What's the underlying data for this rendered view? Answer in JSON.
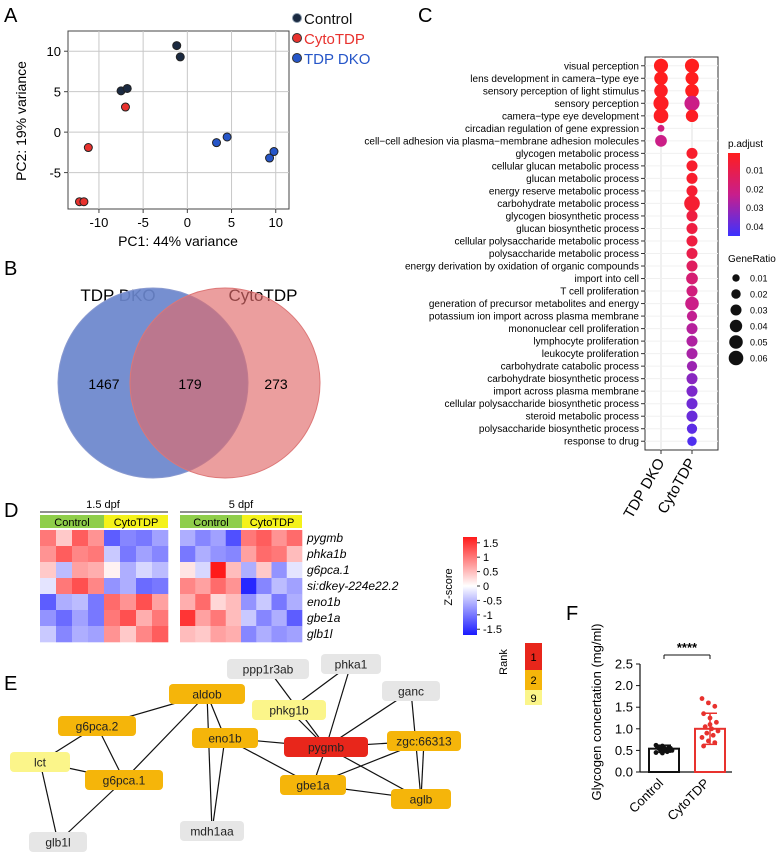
{
  "panels": {
    "A": "A",
    "B": "B",
    "C": "C",
    "D": "D",
    "E": "E",
    "F": "F"
  },
  "colors": {
    "control": "#1b2a41",
    "cytotdp": "#e8322e",
    "tdpdko": "#2656c8",
    "venn_dko": "#6a86cc",
    "venn_cyto": "#e06a6a",
    "bar_control": "#111111",
    "bar_cyto": "#e8322e"
  },
  "panelA": {
    "chart_data": {
      "type": "scatter",
      "xlabel": "PC1: 44% variance",
      "ylabel": "PC2: 19% variance",
      "xlim": [
        -13.5,
        11.5
      ],
      "ylim": [
        -9.5,
        12.5
      ],
      "xticks": [
        -10,
        -5,
        0,
        5,
        10
      ],
      "yticks": [
        -5,
        0,
        5,
        10
      ],
      "xtick_labels": [
        "-10",
        "-5",
        "0",
        "5",
        "10"
      ],
      "ytick_labels": [
        "-5",
        "0",
        "5",
        "10"
      ],
      "legend": [
        "Control",
        "CytoTDP",
        "TDP DKO"
      ],
      "series": [
        {
          "name": "Control",
          "points": [
            [
              -7.5,
              5.1
            ],
            [
              -6.8,
              5.4
            ],
            [
              -1.2,
              10.7
            ],
            [
              -0.8,
              9.3
            ]
          ]
        },
        {
          "name": "CytoTDP",
          "points": [
            [
              -7.0,
              3.1
            ],
            [
              -11.2,
              -1.9
            ],
            [
              -12.2,
              -8.6
            ],
            [
              -11.7,
              -8.6
            ]
          ]
        },
        {
          "name": "TDP DKO",
          "points": [
            [
              3.3,
              -1.3
            ],
            [
              4.5,
              -0.6
            ],
            [
              9.3,
              -3.2
            ],
            [
              9.8,
              -2.4
            ]
          ]
        }
      ]
    }
  },
  "panelB": {
    "left_label": "TDP DKO",
    "right_label": "CytoTDP",
    "left_only": "1467",
    "both": "179",
    "right_only": "273"
  },
  "panelC": {
    "chart_data": {
      "type": "scatter",
      "x": [
        "TDP DKO",
        "CytoTDP"
      ],
      "terms": [
        "visual perception",
        "lens development in camera−type eye",
        "sensory perception of light stimulus",
        "sensory perception",
        "camera−type eye development",
        "circadian regulation of gene expression",
        "cell−cell adhesion via plasma−membrane adhesion molecules",
        "glycogen metabolic process",
        "cellular glucan metabolic process",
        "glucan metabolic process",
        "energy reserve metabolic process",
        "carbohydrate metabolic process",
        "glycogen biosynthetic process",
        "glucan biosynthetic process",
        "cellular polysaccharide metabolic process",
        "polysaccharide metabolic process",
        "energy derivation by oxidation of organic compounds",
        "import into cell",
        "T cell proliferation",
        "generation of precursor metabolites and energy",
        "potassium ion import across plasma membrane",
        "mononuclear cell proliferation",
        "lymphocyte proliferation",
        "leukocyte proliferation",
        "carbohydrate catabolic process",
        "carbohydrate biosynthetic process",
        "import across plasma membrane",
        "cellular polysaccharide biosynthetic process",
        "steroid metabolic process",
        "polysaccharide biosynthetic process",
        "response to drug"
      ],
      "points": [
        {
          "term": 0,
          "x": 0,
          "ratio": 0.055,
          "padj": 0.001
        },
        {
          "term": 0,
          "x": 1,
          "ratio": 0.055,
          "padj": 0.001
        },
        {
          "term": 1,
          "x": 0,
          "ratio": 0.05,
          "padj": 0.001
        },
        {
          "term": 1,
          "x": 1,
          "ratio": 0.045,
          "padj": 0.001
        },
        {
          "term": 2,
          "x": 0,
          "ratio": 0.05,
          "padj": 0.002
        },
        {
          "term": 2,
          "x": 1,
          "ratio": 0.05,
          "padj": 0.001
        },
        {
          "term": 3,
          "x": 0,
          "ratio": 0.065,
          "padj": 0.002
        },
        {
          "term": 3,
          "x": 1,
          "ratio": 0.065,
          "padj": 0.022
        },
        {
          "term": 4,
          "x": 0,
          "ratio": 0.06,
          "padj": 0.002
        },
        {
          "term": 4,
          "x": 1,
          "ratio": 0.04,
          "padj": 0.002
        },
        {
          "term": 5,
          "x": 0,
          "ratio": 0.008,
          "padj": 0.02
        },
        {
          "term": 6,
          "x": 0,
          "ratio": 0.035,
          "padj": 0.022
        },
        {
          "term": 7,
          "x": 1,
          "ratio": 0.03,
          "padj": 0.004
        },
        {
          "term": 8,
          "x": 1,
          "ratio": 0.03,
          "padj": 0.004
        },
        {
          "term": 9,
          "x": 1,
          "ratio": 0.03,
          "padj": 0.004
        },
        {
          "term": 10,
          "x": 1,
          "ratio": 0.03,
          "padj": 0.005
        },
        {
          "term": 11,
          "x": 1,
          "ratio": 0.07,
          "padj": 0.005
        },
        {
          "term": 12,
          "x": 1,
          "ratio": 0.03,
          "padj": 0.008
        },
        {
          "term": 13,
          "x": 1,
          "ratio": 0.03,
          "padj": 0.008
        },
        {
          "term": 14,
          "x": 1,
          "ratio": 0.03,
          "padj": 0.008
        },
        {
          "term": 15,
          "x": 1,
          "ratio": 0.03,
          "padj": 0.01
        },
        {
          "term": 16,
          "x": 1,
          "ratio": 0.03,
          "padj": 0.014
        },
        {
          "term": 17,
          "x": 1,
          "ratio": 0.035,
          "padj": 0.018
        },
        {
          "term": 18,
          "x": 1,
          "ratio": 0.03,
          "padj": 0.02
        },
        {
          "term": 19,
          "x": 1,
          "ratio": 0.05,
          "padj": 0.022
        },
        {
          "term": 20,
          "x": 1,
          "ratio": 0.025,
          "padj": 0.024
        },
        {
          "term": 21,
          "x": 1,
          "ratio": 0.03,
          "padj": 0.026
        },
        {
          "term": 22,
          "x": 1,
          "ratio": 0.03,
          "padj": 0.027
        },
        {
          "term": 23,
          "x": 1,
          "ratio": 0.03,
          "padj": 0.028
        },
        {
          "term": 24,
          "x": 1,
          "ratio": 0.025,
          "padj": 0.03
        },
        {
          "term": 25,
          "x": 1,
          "ratio": 0.03,
          "padj": 0.033
        },
        {
          "term": 26,
          "x": 1,
          "ratio": 0.03,
          "padj": 0.035
        },
        {
          "term": 27,
          "x": 1,
          "ratio": 0.03,
          "padj": 0.037
        },
        {
          "term": 28,
          "x": 1,
          "ratio": 0.03,
          "padj": 0.038
        },
        {
          "term": 29,
          "x": 1,
          "ratio": 0.025,
          "padj": 0.04
        },
        {
          "term": 30,
          "x": 1,
          "ratio": 0.02,
          "padj": 0.042
        }
      ],
      "legend_padj": {
        "title": "p.adjust",
        "ticks": [
          "0.01",
          "0.02",
          "0.03",
          "0.04"
        ],
        "values": [
          0.01,
          0.02,
          0.03,
          0.04
        ],
        "range": [
          0.001,
          0.045
        ]
      },
      "legend_ratio": {
        "title": "GeneRatio",
        "ticks": [
          "0.01",
          "0.02",
          "0.03",
          "0.04",
          "0.05",
          "0.06"
        ],
        "values": [
          0.01,
          0.02,
          0.03,
          0.04,
          0.05,
          0.06
        ]
      }
    }
  },
  "panelD": {
    "chart_data": {
      "type": "heatmap",
      "blocks": [
        {
          "title": "1.5 dpf",
          "groups": [
            "Control",
            "CytoTDP"
          ],
          "z": [
            [
              1.0,
              0.4,
              1.2,
              0.8,
              -1.2,
              -0.9,
              -1.0,
              -0.7
            ],
            [
              0.8,
              1.2,
              0.9,
              1.0,
              -0.4,
              -1.0,
              -0.7,
              -0.9
            ],
            [
              0.4,
              -0.5,
              0.7,
              0.6,
              0.1,
              -0.6,
              -0.3,
              -0.5
            ],
            [
              -0.2,
              1.0,
              1.3,
              0.9,
              -0.8,
              -0.6,
              -1.1,
              -1.0
            ],
            [
              -1.2,
              -0.6,
              -0.5,
              -1.0,
              1.1,
              0.8,
              1.3,
              0.7
            ],
            [
              -0.8,
              -1.1,
              -0.7,
              -1.0,
              1.0,
              1.3,
              0.6,
              1.0
            ],
            [
              -0.4,
              -0.9,
              -0.6,
              -0.7,
              0.8,
              0.4,
              0.9,
              1.2
            ]
          ]
        },
        {
          "title": "5 dpf",
          "groups": [
            "Control",
            "CytoTDP"
          ],
          "z": [
            [
              -0.6,
              -0.9,
              -0.7,
              -1.3,
              1.0,
              1.2,
              0.8,
              1.1
            ],
            [
              -1.0,
              -0.6,
              -0.8,
              -0.9,
              0.7,
              1.1,
              1.0,
              0.5
            ],
            [
              0.2,
              -0.3,
              1.7,
              0.5,
              -0.6,
              0.4,
              -0.8,
              -0.2
            ],
            [
              0.9,
              0.7,
              1.1,
              0.8,
              -1.6,
              -0.9,
              -0.5,
              -0.7
            ],
            [
              0.6,
              1.1,
              0.3,
              0.5,
              -0.8,
              -0.4,
              -1.0,
              -0.6
            ],
            [
              1.5,
              0.7,
              1.0,
              0.5,
              -0.4,
              -0.9,
              -0.6,
              -1.2
            ],
            [
              0.5,
              0.4,
              0.7,
              0.6,
              -0.9,
              -0.6,
              -0.8,
              -0.7
            ]
          ]
        }
      ],
      "genes": [
        "pygmb",
        "phka1b",
        "g6pca.1",
        "si:dkey-224e22.2",
        "eno1b",
        "gbe1a",
        "glb1l"
      ],
      "colorbar": {
        "title": "Z-score",
        "ticks": [
          "1.5",
          "1",
          "0.5",
          "0",
          "-0.5",
          "-1",
          "-1.5"
        ],
        "values": [
          1.5,
          1,
          0.5,
          0,
          -0.5,
          -1,
          -1.5
        ]
      }
    }
  },
  "panelE": {
    "rank_title": "Rank",
    "rank_labels": [
      "1",
      "2",
      "9"
    ],
    "rank_colors": [
      "#e8261b",
      "#f5b50a",
      "#fbf58a"
    ],
    "none_color": "#e6e6e6",
    "nodes": [
      {
        "id": "aldob",
        "rank": 2
      },
      {
        "id": "ppp1r3ab",
        "rank": 0
      },
      {
        "id": "phka1",
        "rank": 0
      },
      {
        "id": "ganc",
        "rank": 0
      },
      {
        "id": "g6pca.2",
        "rank": 2
      },
      {
        "id": "phkg1b",
        "rank": 9
      },
      {
        "id": "eno1b",
        "rank": 2
      },
      {
        "id": "pygmb",
        "rank": 1
      },
      {
        "id": "zgc:66313",
        "rank": 2
      },
      {
        "id": "lct",
        "rank": 9
      },
      {
        "id": "g6pca.1",
        "rank": 2
      },
      {
        "id": "gbe1a",
        "rank": 2
      },
      {
        "id": "aglb",
        "rank": 2
      },
      {
        "id": "glb1l",
        "rank": 0
      },
      {
        "id": "mdh1aa",
        "rank": 0
      }
    ]
  },
  "panelF": {
    "chart_data": {
      "type": "bar",
      "categories": [
        "Control",
        "CytoTDP"
      ],
      "values": [
        0.54,
        1.0
      ],
      "errors": [
        0.08,
        0.36
      ],
      "ylabel": "Glycogen concertation  (mg/ml)",
      "ylim": [
        0,
        2.5
      ],
      "yticks": [
        "0.0",
        "0.5",
        "1.0",
        "1.5",
        "2.0",
        "2.5"
      ],
      "significance": "****",
      "points": {
        "Control": [
          0.62,
          0.6,
          0.58,
          0.57,
          0.56,
          0.55,
          0.54,
          0.52,
          0.5,
          0.48,
          0.47,
          0.45,
          0.44,
          0.52,
          0.58,
          0.53
        ],
        "CytoTDP": [
          1.7,
          1.6,
          1.52,
          1.35,
          1.25,
          1.15,
          1.05,
          1.0,
          0.95,
          0.9,
          0.85,
          0.8,
          0.72,
          0.68,
          0.6,
          1.1
        ]
      }
    }
  }
}
